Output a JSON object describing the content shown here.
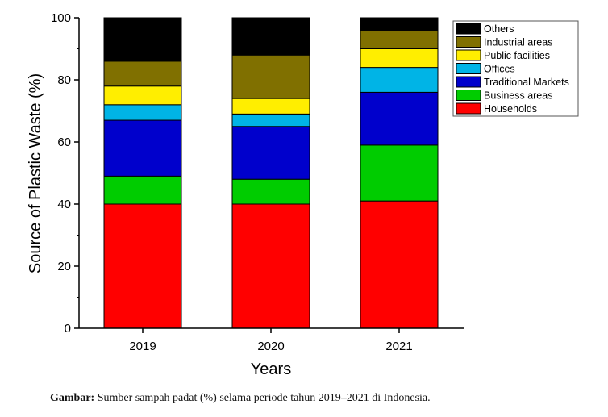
{
  "chart_data": {
    "type": "bar",
    "stacked": true,
    "categories": [
      "2019",
      "2020",
      "2021"
    ],
    "series": [
      {
        "name": "Households",
        "color": "#ff0000",
        "values": [
          40,
          40,
          41
        ]
      },
      {
        "name": "Business areas",
        "color": "#00cc00",
        "values": [
          9,
          8,
          18
        ]
      },
      {
        "name": "Traditional Markets",
        "color": "#0000cc",
        "values": [
          18,
          17,
          17
        ]
      },
      {
        "name": "Offices",
        "color": "#00b4e6",
        "values": [
          5,
          4,
          8
        ]
      },
      {
        "name": "Public facilities",
        "color": "#ffee00",
        "values": [
          6,
          5,
          6
        ]
      },
      {
        "name": "Industrial areas",
        "color": "#807000",
        "values": [
          8,
          14,
          6
        ]
      },
      {
        "name": "Others",
        "color": "#000000",
        "values": [
          14,
          12,
          4
        ]
      }
    ],
    "title": "",
    "xlabel": "Years",
    "ylabel": "Source of Plastic Waste (%)",
    "ylim": [
      0,
      100
    ],
    "yticks": [
      0,
      20,
      40,
      60,
      80,
      100
    ],
    "legend_position": "top-right",
    "grid": false
  },
  "caption": {
    "lead": "Gambar:",
    "text": " Sumber sampah padat (%) selama periode tahun 2019–2021 di Indonesia."
  }
}
